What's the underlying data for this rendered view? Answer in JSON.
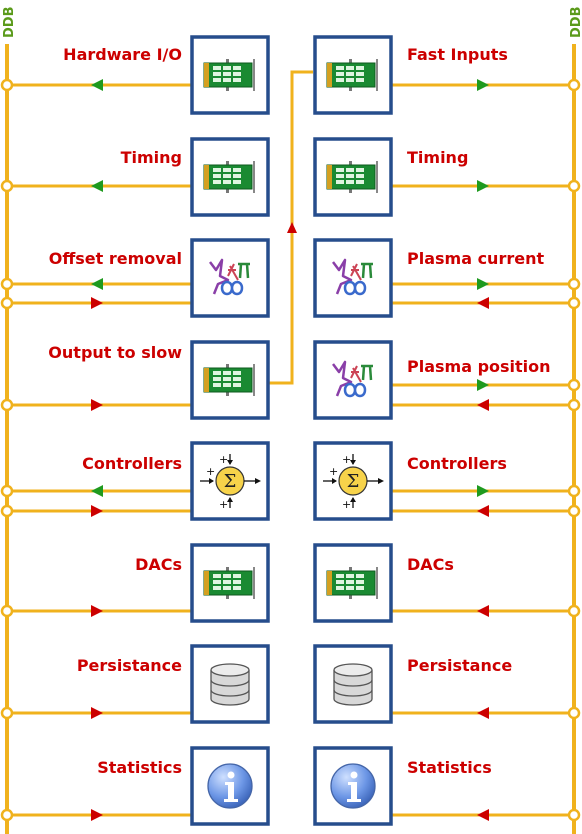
{
  "ddb_label": "DDB",
  "colors": {
    "bus": "#f0b21d",
    "label": "#cc0000",
    "ddb": "#5a9a1a",
    "arrow_read": "#1f9a1f",
    "arrow_write": "#cc0000",
    "box_border": "#264d8c"
  },
  "left_column": [
    {
      "label": "Hardware I/O",
      "icon": "board-icon",
      "arrows": [
        "read"
      ]
    },
    {
      "label": "Timing",
      "icon": "board-icon",
      "arrows": [
        "read"
      ]
    },
    {
      "label": "Offset removal",
      "icon": "math-icon",
      "arrows": [
        "read",
        "write"
      ]
    },
    {
      "label": "Output to slow",
      "icon": "board-icon",
      "arrows": [
        "write"
      ]
    },
    {
      "label": "Controllers",
      "icon": "sum-icon",
      "arrows": [
        "read",
        "write"
      ]
    },
    {
      "label": "DACs",
      "icon": "board-icon",
      "arrows": [
        "write"
      ]
    },
    {
      "label": "Persistance",
      "icon": "database-icon",
      "arrows": [
        "write"
      ]
    },
    {
      "label": "Statistics",
      "icon": "info-icon",
      "arrows": [
        "write"
      ]
    }
  ],
  "right_column": [
    {
      "label": "Fast Inputs",
      "icon": "board-icon",
      "arrows": [
        "read"
      ]
    },
    {
      "label": "Timing",
      "icon": "board-icon",
      "arrows": [
        "read"
      ]
    },
    {
      "label": "Plasma current",
      "icon": "math-icon",
      "arrows": [
        "read",
        "write"
      ]
    },
    {
      "label": "Plasma position",
      "icon": "math-icon",
      "arrows": [
        "read",
        "write"
      ]
    },
    {
      "label": "Controllers",
      "icon": "sum-icon",
      "arrows": [
        "read",
        "write"
      ]
    },
    {
      "label": "DACs",
      "icon": "board-icon",
      "arrows": [
        "write"
      ]
    },
    {
      "label": "Persistance",
      "icon": "database-icon",
      "arrows": [
        "write"
      ]
    },
    {
      "label": "Statistics",
      "icon": "info-icon",
      "arrows": [
        "write"
      ]
    }
  ]
}
